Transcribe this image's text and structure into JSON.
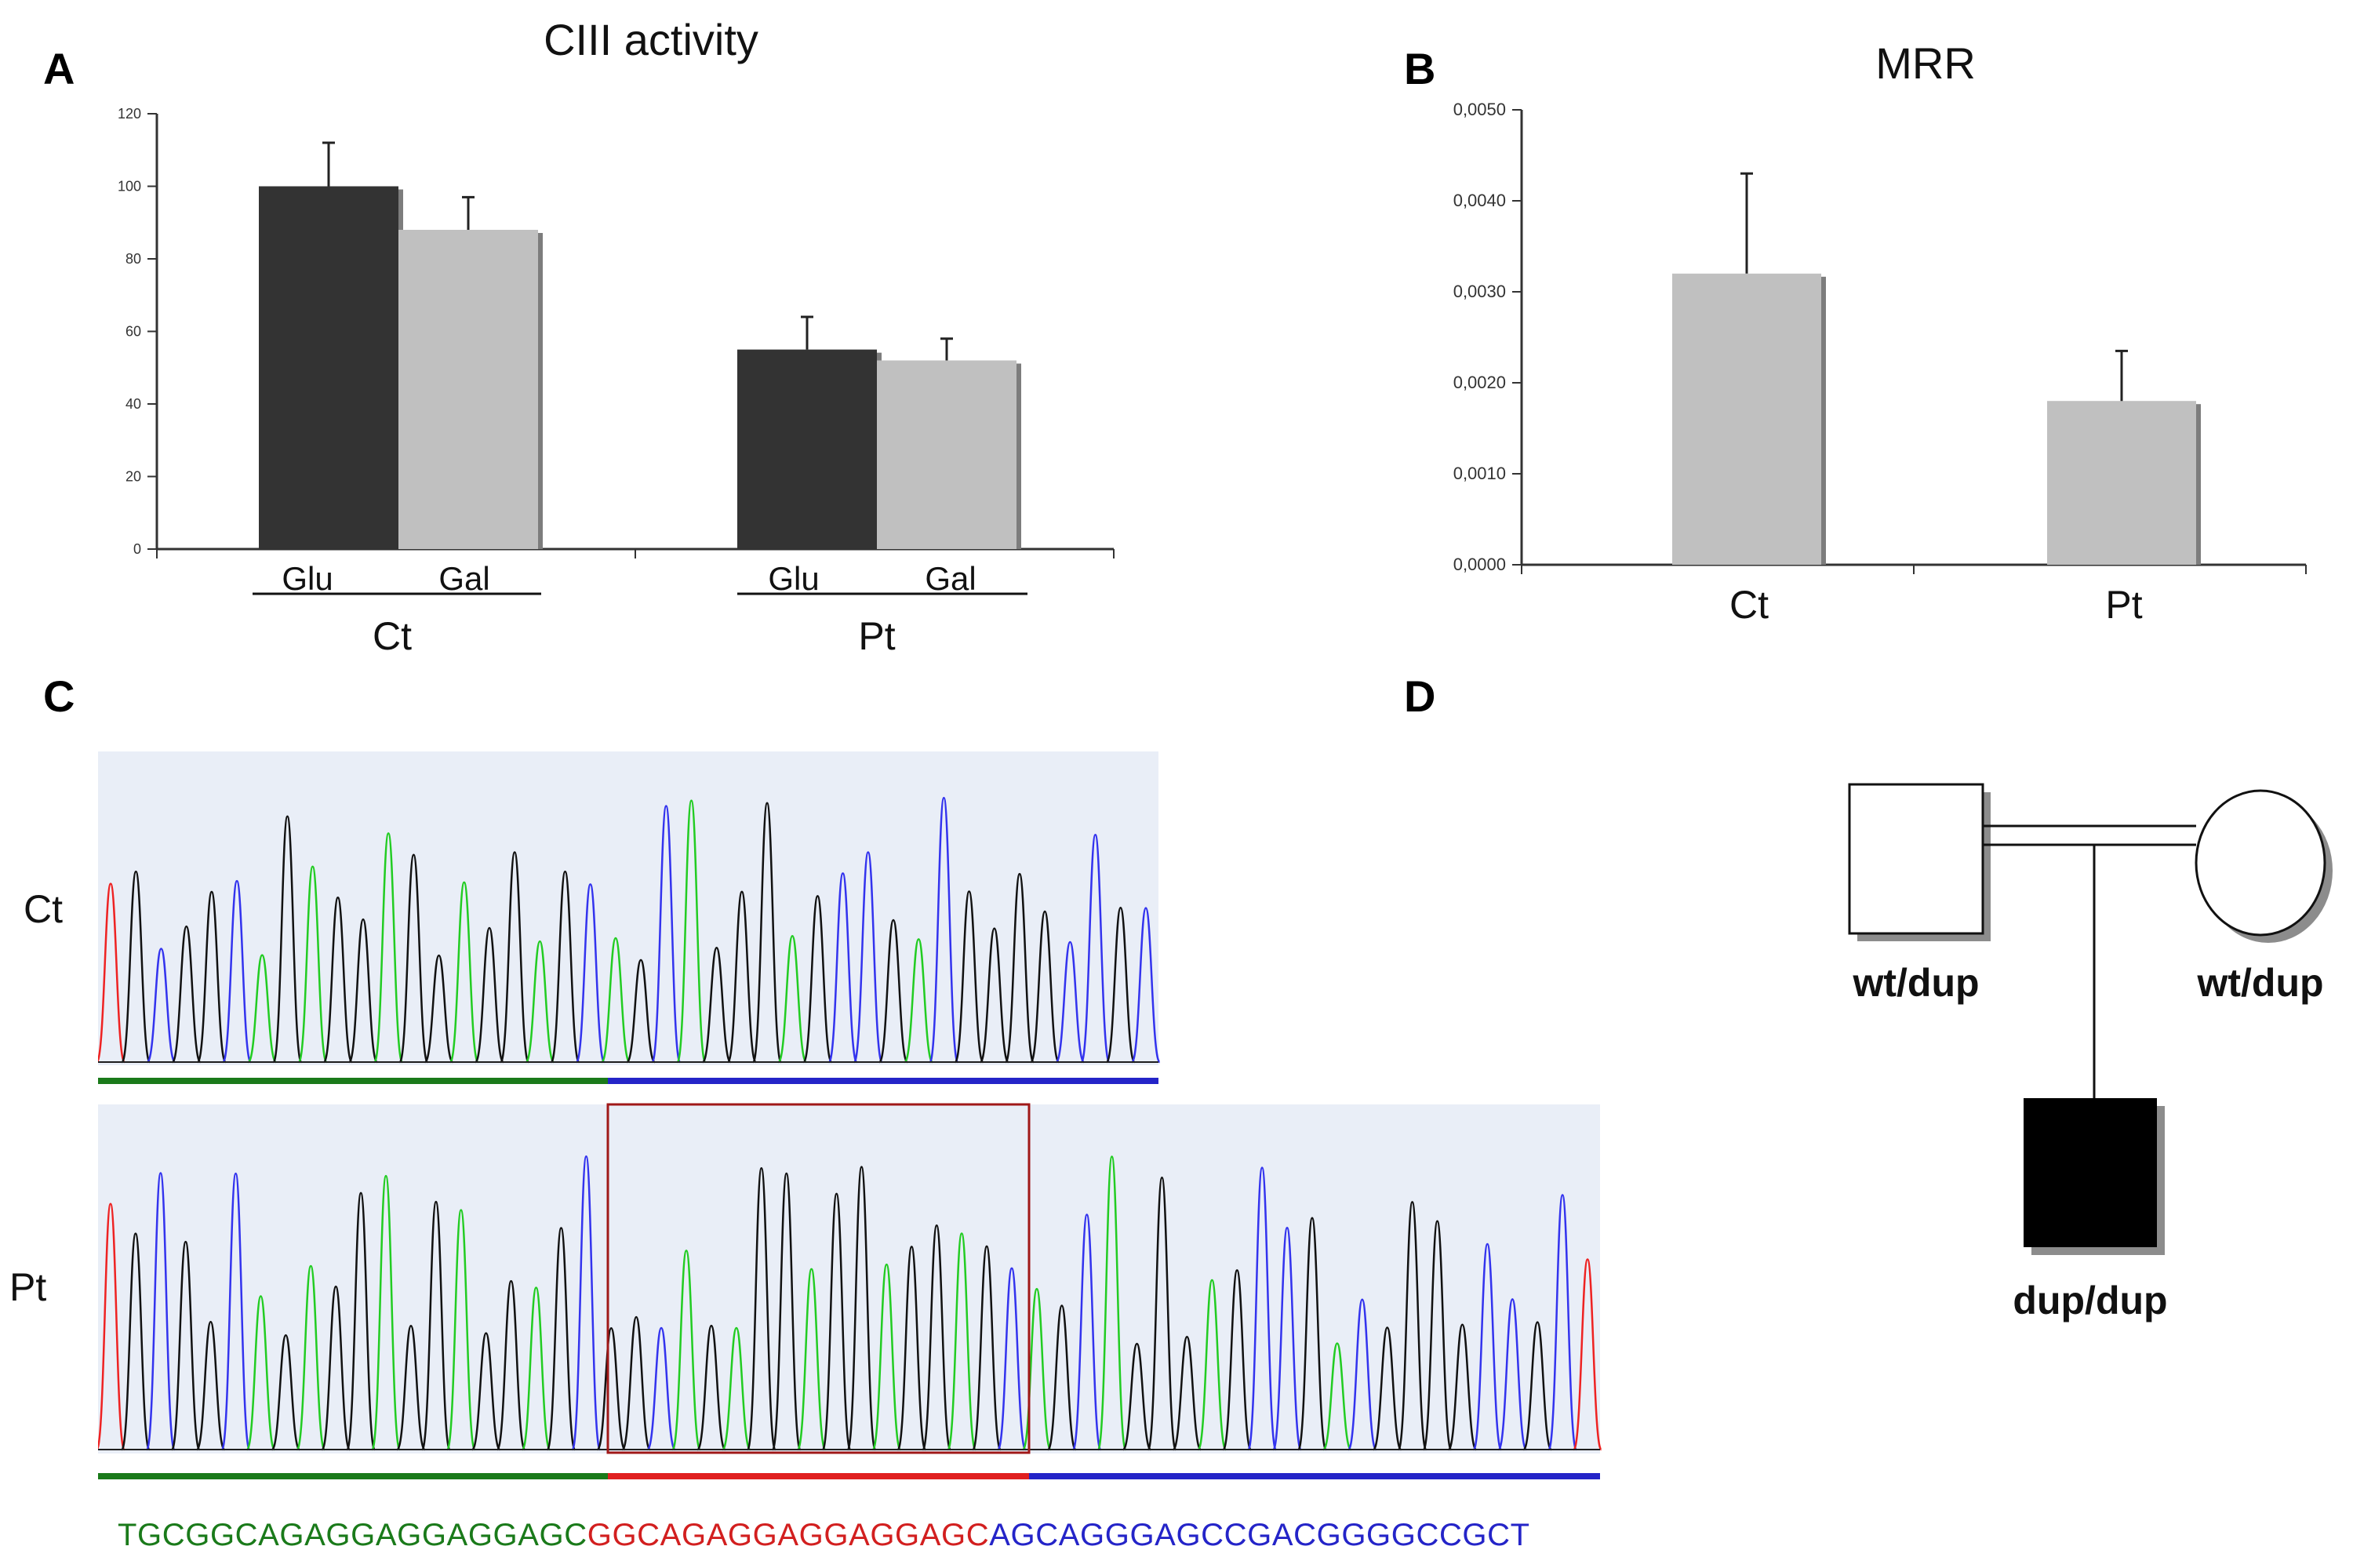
{
  "panels": {
    "a": {
      "letter": "A"
    },
    "b": {
      "letter": "B"
    },
    "c": {
      "letter": "C"
    },
    "d": {
      "letter": "D"
    }
  },
  "chart_data": [
    {
      "type": "bar",
      "title": "CIII activity",
      "groups": [
        "Ct",
        "Pt"
      ],
      "subcategories": [
        "Glu",
        "Gal"
      ],
      "series": [
        {
          "name": "Glu",
          "color": "#333333",
          "values": [
            100,
            55
          ],
          "errors": [
            12,
            9
          ]
        },
        {
          "name": "Gal",
          "color": "#c0c0c0",
          "values": [
            88,
            52
          ],
          "errors": [
            9,
            6
          ]
        }
      ],
      "ylim": [
        0,
        120
      ],
      "yticks": [
        "0",
        "20",
        "40",
        "60",
        "80",
        "100",
        "120"
      ],
      "xlabel": "",
      "ylabel": ""
    },
    {
      "type": "bar",
      "title": "MRR",
      "categories": [
        "Ct",
        "Pt"
      ],
      "values": [
        0.0032,
        0.0018
      ],
      "errors": [
        0.0011,
        0.00055
      ],
      "color": "#c0c0c0",
      "ylim": [
        0,
        0.005
      ],
      "yticks": [
        "0,0000",
        "0,0010",
        "0,0020",
        "0,0030",
        "0,0040",
        "0,0050"
      ],
      "xlabel": "",
      "ylabel": ""
    }
  ],
  "chromatogram": {
    "ct_label": "Ct",
    "pt_label": "Pt",
    "colors": {
      "A": "#22cc22",
      "C": "#3333ee",
      "G": "#111111",
      "T": "#ee2222",
      "box": "#a01818"
    },
    "sequence": {
      "green": "TGCGGCAGAGGAGGAGGAGC",
      "red": "GGCAGAGGAGGAGGAGC",
      "blue": "AGCAGGGAGCCGACGGGGCCGCT"
    }
  },
  "pedigree": {
    "father_genotype": "wt/dup",
    "mother_genotype": "wt/dup",
    "child_genotype": "dup/dup"
  }
}
